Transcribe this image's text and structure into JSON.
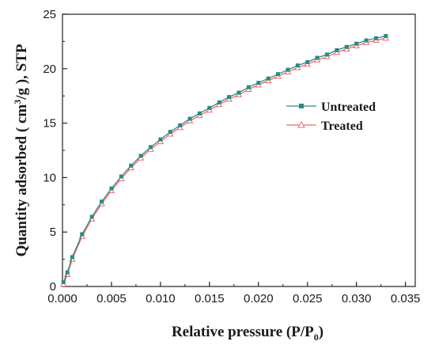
{
  "chart_data": {
    "type": "line",
    "xlabel_text": "Relative pressure (P/P",
    "xlabel_sub": "0",
    "xlabel_end": ")",
    "ylabel_pre": "Quantity adsorbed ( cm",
    "ylabel_sup": "3",
    "ylabel_post": "/g ), STP",
    "xlim": [
      0,
      0.036
    ],
    "ylim": [
      0,
      25
    ],
    "xticks": [
      "0.000",
      "0.005",
      "0.010",
      "0.015",
      "0.020",
      "0.025",
      "0.030",
      "0.035"
    ],
    "yticks": [
      "0",
      "5",
      "10",
      "15",
      "20",
      "25"
    ],
    "legend_position": "center-right",
    "grid": false,
    "series": [
      {
        "name": "Untreated",
        "color": "#2a8a86",
        "marker": "square",
        "x": [
          0.0001,
          0.0005,
          0.001,
          0.002,
          0.003,
          0.004,
          0.005,
          0.006,
          0.007,
          0.008,
          0.009,
          0.01,
          0.011,
          0.012,
          0.013,
          0.014,
          0.015,
          0.016,
          0.017,
          0.018,
          0.019,
          0.02,
          0.021,
          0.022,
          0.023,
          0.024,
          0.025,
          0.026,
          0.027,
          0.028,
          0.029,
          0.03,
          0.031,
          0.032,
          0.033
        ],
        "y": [
          0.4,
          1.3,
          2.7,
          4.8,
          6.4,
          7.8,
          9.0,
          10.1,
          11.1,
          12.0,
          12.8,
          13.5,
          14.2,
          14.8,
          15.4,
          15.9,
          16.4,
          16.9,
          17.4,
          17.8,
          18.3,
          18.7,
          19.1,
          19.5,
          19.9,
          20.3,
          20.6,
          21.0,
          21.3,
          21.7,
          22.0,
          22.3,
          22.6,
          22.8,
          23.0
        ]
      },
      {
        "name": "Treated",
        "color": "#f06a6a",
        "marker": "triangle",
        "x": [
          0.0001,
          0.0005,
          0.001,
          0.002,
          0.003,
          0.004,
          0.005,
          0.006,
          0.007,
          0.008,
          0.009,
          0.01,
          0.011,
          0.012,
          0.013,
          0.014,
          0.015,
          0.016,
          0.017,
          0.018,
          0.019,
          0.02,
          0.021,
          0.022,
          0.023,
          0.024,
          0.025,
          0.026,
          0.027,
          0.028,
          0.029,
          0.03,
          0.031,
          0.032,
          0.033
        ],
        "y": [
          0.2,
          1.1,
          2.5,
          4.6,
          6.2,
          7.6,
          8.8,
          9.9,
          10.9,
          11.8,
          12.6,
          13.3,
          14.0,
          14.6,
          15.2,
          15.7,
          16.2,
          16.7,
          17.2,
          17.6,
          18.1,
          18.5,
          18.9,
          19.3,
          19.7,
          20.1,
          20.4,
          20.8,
          21.1,
          21.5,
          21.8,
          22.1,
          22.4,
          22.6,
          22.8
        ]
      }
    ]
  }
}
